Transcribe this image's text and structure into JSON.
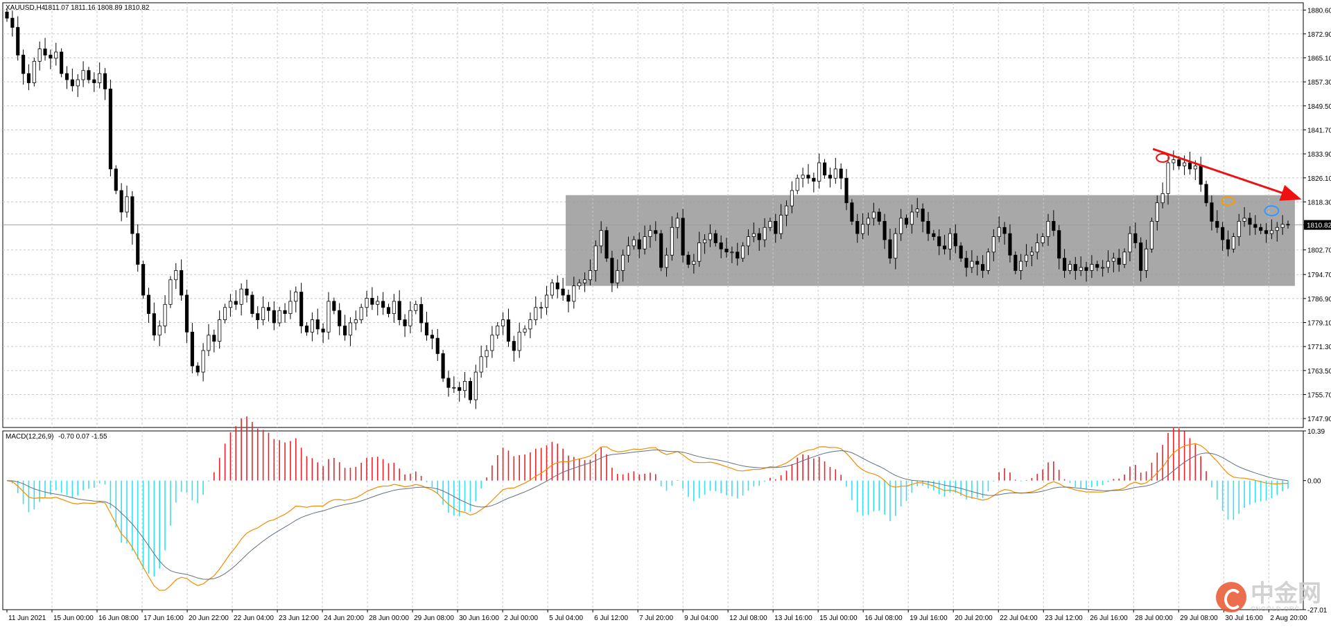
{
  "header": {
    "symbol": "XAUUSD,H4",
    "ohlc": "1811.07 1811.16 1808.89 1810.82"
  },
  "macd_header": {
    "label": "MACD(12,26,9)",
    "values": "-0.70 0.07 -1.55"
  },
  "colors": {
    "up_candle": "#ffffff",
    "down_candle": "#000000",
    "grid": "#c8c8c8",
    "range_box": "#999999",
    "macd_pos": "#e8222a",
    "macd_neg": "#33e0f0",
    "macd_line": "#f28c00",
    "signal_line": "#607080",
    "arrow": "#ee1111",
    "circle_red": "#ee1111",
    "circle_orange": "#f0a000",
    "circle_blue": "#3399ff"
  },
  "watermark": {
    "main": "中金网",
    "sub": "CNGOLD.ORG"
  },
  "chart_data": [
    {
      "type": "candlestick",
      "title": "XAUUSD,H4",
      "current_price": 1810.82,
      "ylim": [
        1745.0,
        1883.0
      ],
      "price_ticks": [
        "1880.60",
        "1872.90",
        "1865.10",
        "1857.30",
        "1849.50",
        "1841.70",
        "1833.90",
        "1826.10",
        "1818.30",
        "1810.82",
        "1802.70",
        "1794.70",
        "1786.90",
        "1779.10",
        "1771.30",
        "1763.50",
        "1755.70",
        "1747.90"
      ],
      "time_labels": [
        "11 Jun 2021",
        "15 Jun 00:00",
        "16 Jun 08:00",
        "17 Jun 16:00",
        "20 Jun 22:00",
        "22 Jun 04:00",
        "23 Jun 12:00",
        "24 Jun 20:00",
        "28 Jun 00:00",
        "29 Jun 08:00",
        "30 Jun 16:00",
        "2 Jul 00:00",
        "5 Jul 04:00",
        "6 Jul 12:00",
        "7 Jul 20:00",
        "9 Jul 04:00",
        "12 Jul 08:00",
        "13 Jul 16:00",
        "15 Jul 00:00",
        "16 Jul 08:00",
        "19 Jul 16:00",
        "20 Jul 20:00",
        "22 Jul 04:00",
        "23 Jul 12:00",
        "26 Jul 16:00",
        "28 Jul 00:00",
        "29 Jul 08:00",
        "30 Jul 16:00",
        "2 Aug 20:00"
      ],
      "range_box": {
        "high": 1820.5,
        "low": 1791.0,
        "start": "6 Jul 12:00"
      },
      "closes": [
        1878,
        1875,
        1866,
        1860,
        1857,
        1864,
        1868,
        1866,
        1865,
        1867,
        1860,
        1858,
        1856,
        1858,
        1861,
        1858,
        1857,
        1860,
        1855,
        1829,
        1822,
        1815,
        1820,
        1808,
        1798,
        1788,
        1782,
        1775,
        1778,
        1785,
        1793,
        1796,
        1788,
        1776,
        1765,
        1763,
        1770,
        1775,
        1773,
        1780,
        1784,
        1786,
        1785,
        1790,
        1788,
        1782,
        1780,
        1784,
        1783,
        1779,
        1783,
        1782,
        1786,
        1789,
        1778,
        1776,
        1780,
        1777,
        1776,
        1786,
        1783,
        1778,
        1775,
        1779,
        1780,
        1784,
        1787,
        1785,
        1786,
        1784,
        1782,
        1786,
        1780,
        1778,
        1783,
        1785,
        1779,
        1775,
        1774,
        1769,
        1761,
        1758,
        1758,
        1757,
        1760,
        1754,
        1763,
        1768,
        1770,
        1775,
        1778,
        1780,
        1773,
        1770,
        1776,
        1777,
        1780,
        1784,
        1784,
        1788,
        1792,
        1790,
        1788,
        1786,
        1791,
        1792,
        1793,
        1796,
        1804,
        1809,
        1800,
        1792,
        1796,
        1801,
        1804,
        1806,
        1803,
        1807,
        1809,
        1808,
        1797,
        1801,
        1810,
        1813,
        1801,
        1798,
        1799,
        1805,
        1806,
        1808,
        1805,
        1803,
        1802,
        1802,
        1800,
        1804,
        1807,
        1808,
        1806,
        1810,
        1812,
        1808,
        1814,
        1817,
        1822,
        1826,
        1827,
        1826,
        1825,
        1831,
        1827,
        1826,
        1829,
        1826,
        1818,
        1812,
        1808,
        1811,
        1813,
        1815,
        1812,
        1806,
        1800,
        1808,
        1813,
        1811,
        1815,
        1816,
        1812,
        1808,
        1807,
        1804,
        1803,
        1808,
        1804,
        1800,
        1797,
        1799,
        1798,
        1796,
        1802,
        1807,
        1810,
        1808,
        1801,
        1796,
        1799,
        1801,
        1802,
        1805,
        1807,
        1812,
        1809,
        1800,
        1796,
        1798,
        1796,
        1797,
        1796,
        1798,
        1797,
        1797,
        1799,
        1800,
        1798,
        1802,
        1808,
        1805,
        1796,
        1803,
        1812,
        1818,
        1821,
        1831,
        1832,
        1830,
        1831,
        1829,
        1830,
        1824,
        1818,
        1812,
        1810,
        1806,
        1803,
        1807,
        1812,
        1813,
        1811,
        1810,
        1809,
        1808,
        1809,
        1810,
        1811,
        1810.82
      ]
    },
    {
      "type": "bar",
      "title": "MACD(12,26,9)",
      "ylim": [
        -27.01,
        10.39
      ],
      "ticks": [
        "10.39",
        "0.00",
        "-27.01"
      ],
      "histogram_note": "values derived from price series (MACD 12,26,9)"
    }
  ]
}
